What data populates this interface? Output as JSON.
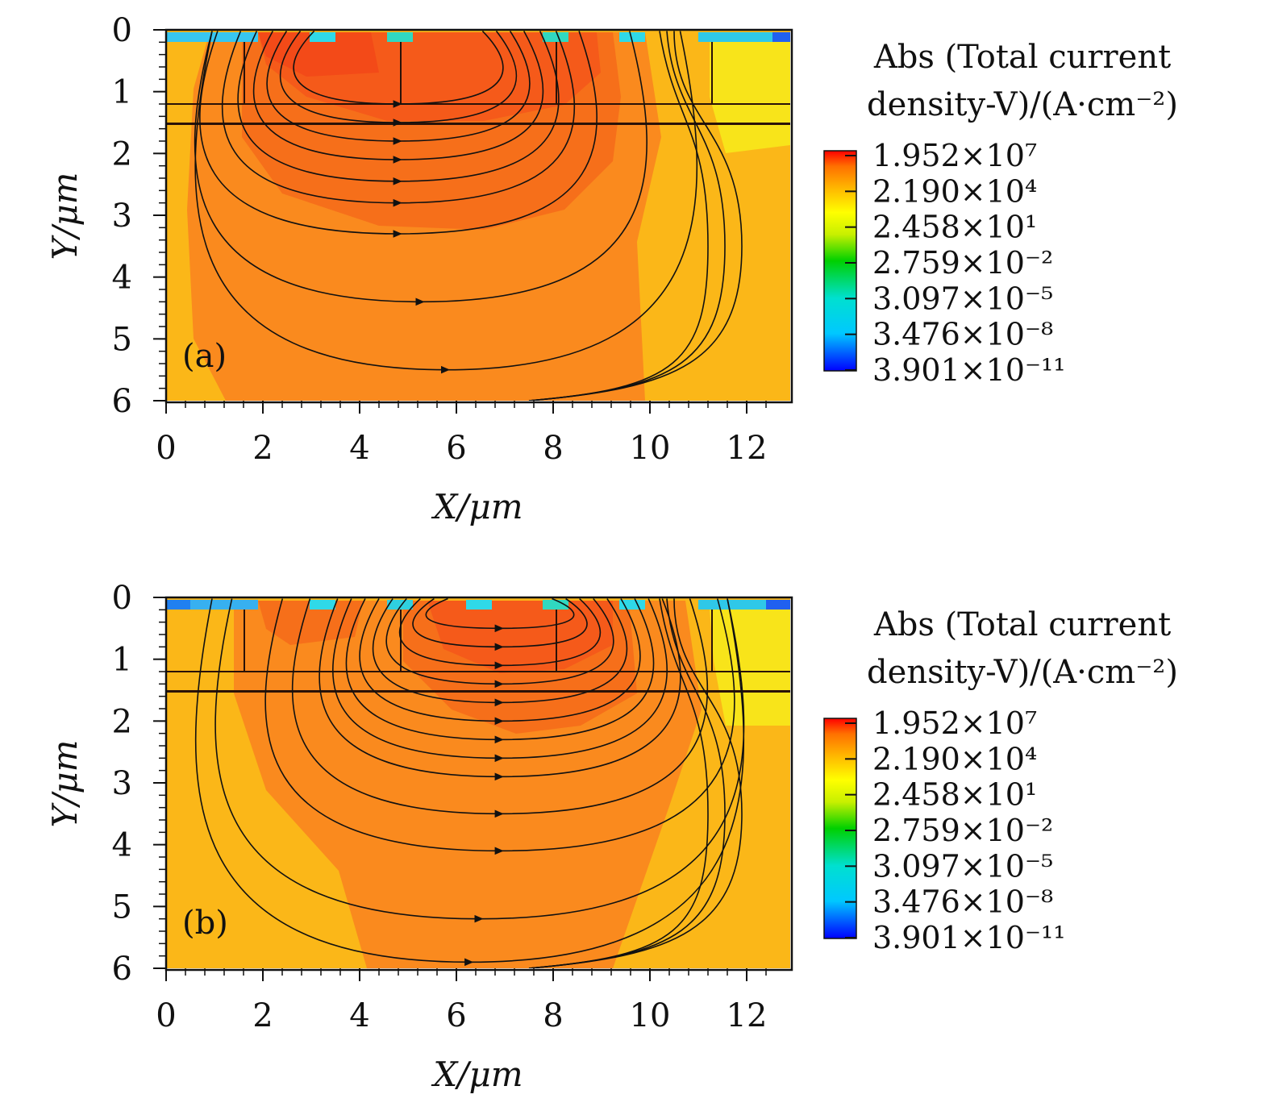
{
  "chart_data": [
    {
      "type": "heatmap",
      "panel_label": "(a)",
      "xlabel": "X/μm",
      "ylabel": "Y/μm",
      "xlim": [
        0,
        12.9
      ],
      "ylim": [
        6,
        0
      ],
      "x_ticks": [
        "0",
        "2",
        "4",
        "6",
        "8",
        "10",
        "12"
      ],
      "y_ticks": [
        "0",
        "1",
        "2",
        "3",
        "4",
        "5",
        "6"
      ],
      "colorbar": {
        "title_line1": "Abs (Total current",
        "title_line2": "density-V)/(A·cm⁻²)",
        "labels": [
          "1.952×10⁷",
          "2.190×10⁴",
          "2.458×10¹",
          "2.759×10⁻²",
          "3.097×10⁻⁵",
          "3.476×10⁻⁸",
          "3.901×10⁻¹¹"
        ]
      },
      "streamline_center_x": 4.8
    },
    {
      "type": "heatmap",
      "panel_label": "(b)",
      "xlabel": "X/μm",
      "ylabel": "Y/μm",
      "xlim": [
        0,
        12.9
      ],
      "ylim": [
        6,
        0
      ],
      "x_ticks": [
        "0",
        "2",
        "4",
        "6",
        "8",
        "10",
        "12"
      ],
      "y_ticks": [
        "0",
        "1",
        "2",
        "3",
        "4",
        "5",
        "6"
      ],
      "colorbar": {
        "title_line1": "Abs (Total current",
        "title_line2": "density-V)/(A·cm⁻²)",
        "labels": [
          "1.952×10⁷",
          "2.190×10⁴",
          "2.458×10¹",
          "2.759×10⁻²",
          "3.097×10⁻⁵",
          "3.476×10⁻⁸",
          "3.901×10⁻¹¹"
        ]
      },
      "streamline_center_x": 6.9
    }
  ]
}
